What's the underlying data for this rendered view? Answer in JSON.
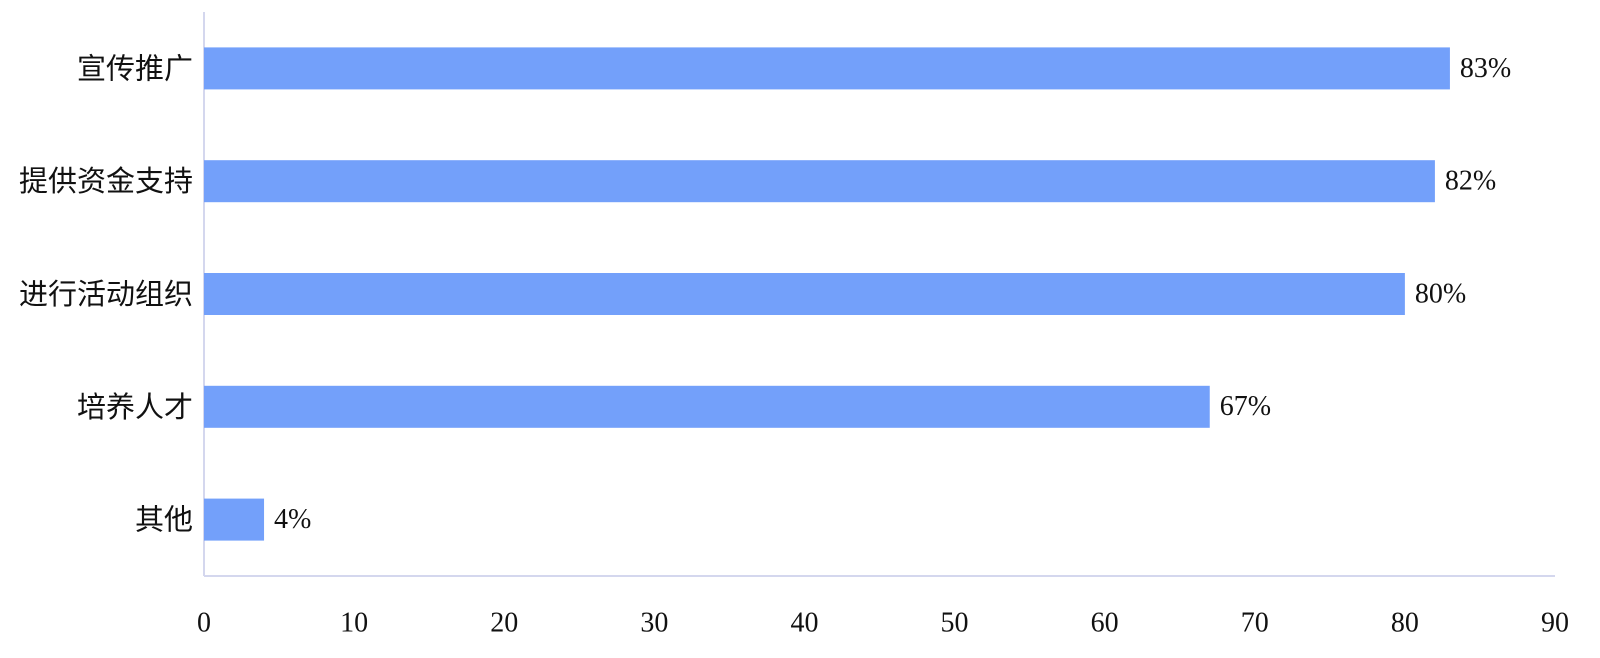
{
  "chart_data": {
    "type": "barh",
    "categories": [
      "宣传推广",
      "提供资金支持",
      "进行活动组织",
      "培养人才",
      "其他"
    ],
    "values": [
      83,
      82,
      80,
      67,
      4
    ],
    "value_labels": [
      "83%",
      "82%",
      "80%",
      "67%",
      "4%"
    ],
    "color": "#73a0fa",
    "xlim": [
      0,
      90
    ],
    "xticks": [
      0,
      10,
      20,
      30,
      40,
      50,
      60,
      70,
      80,
      90
    ],
    "grid": false
  }
}
